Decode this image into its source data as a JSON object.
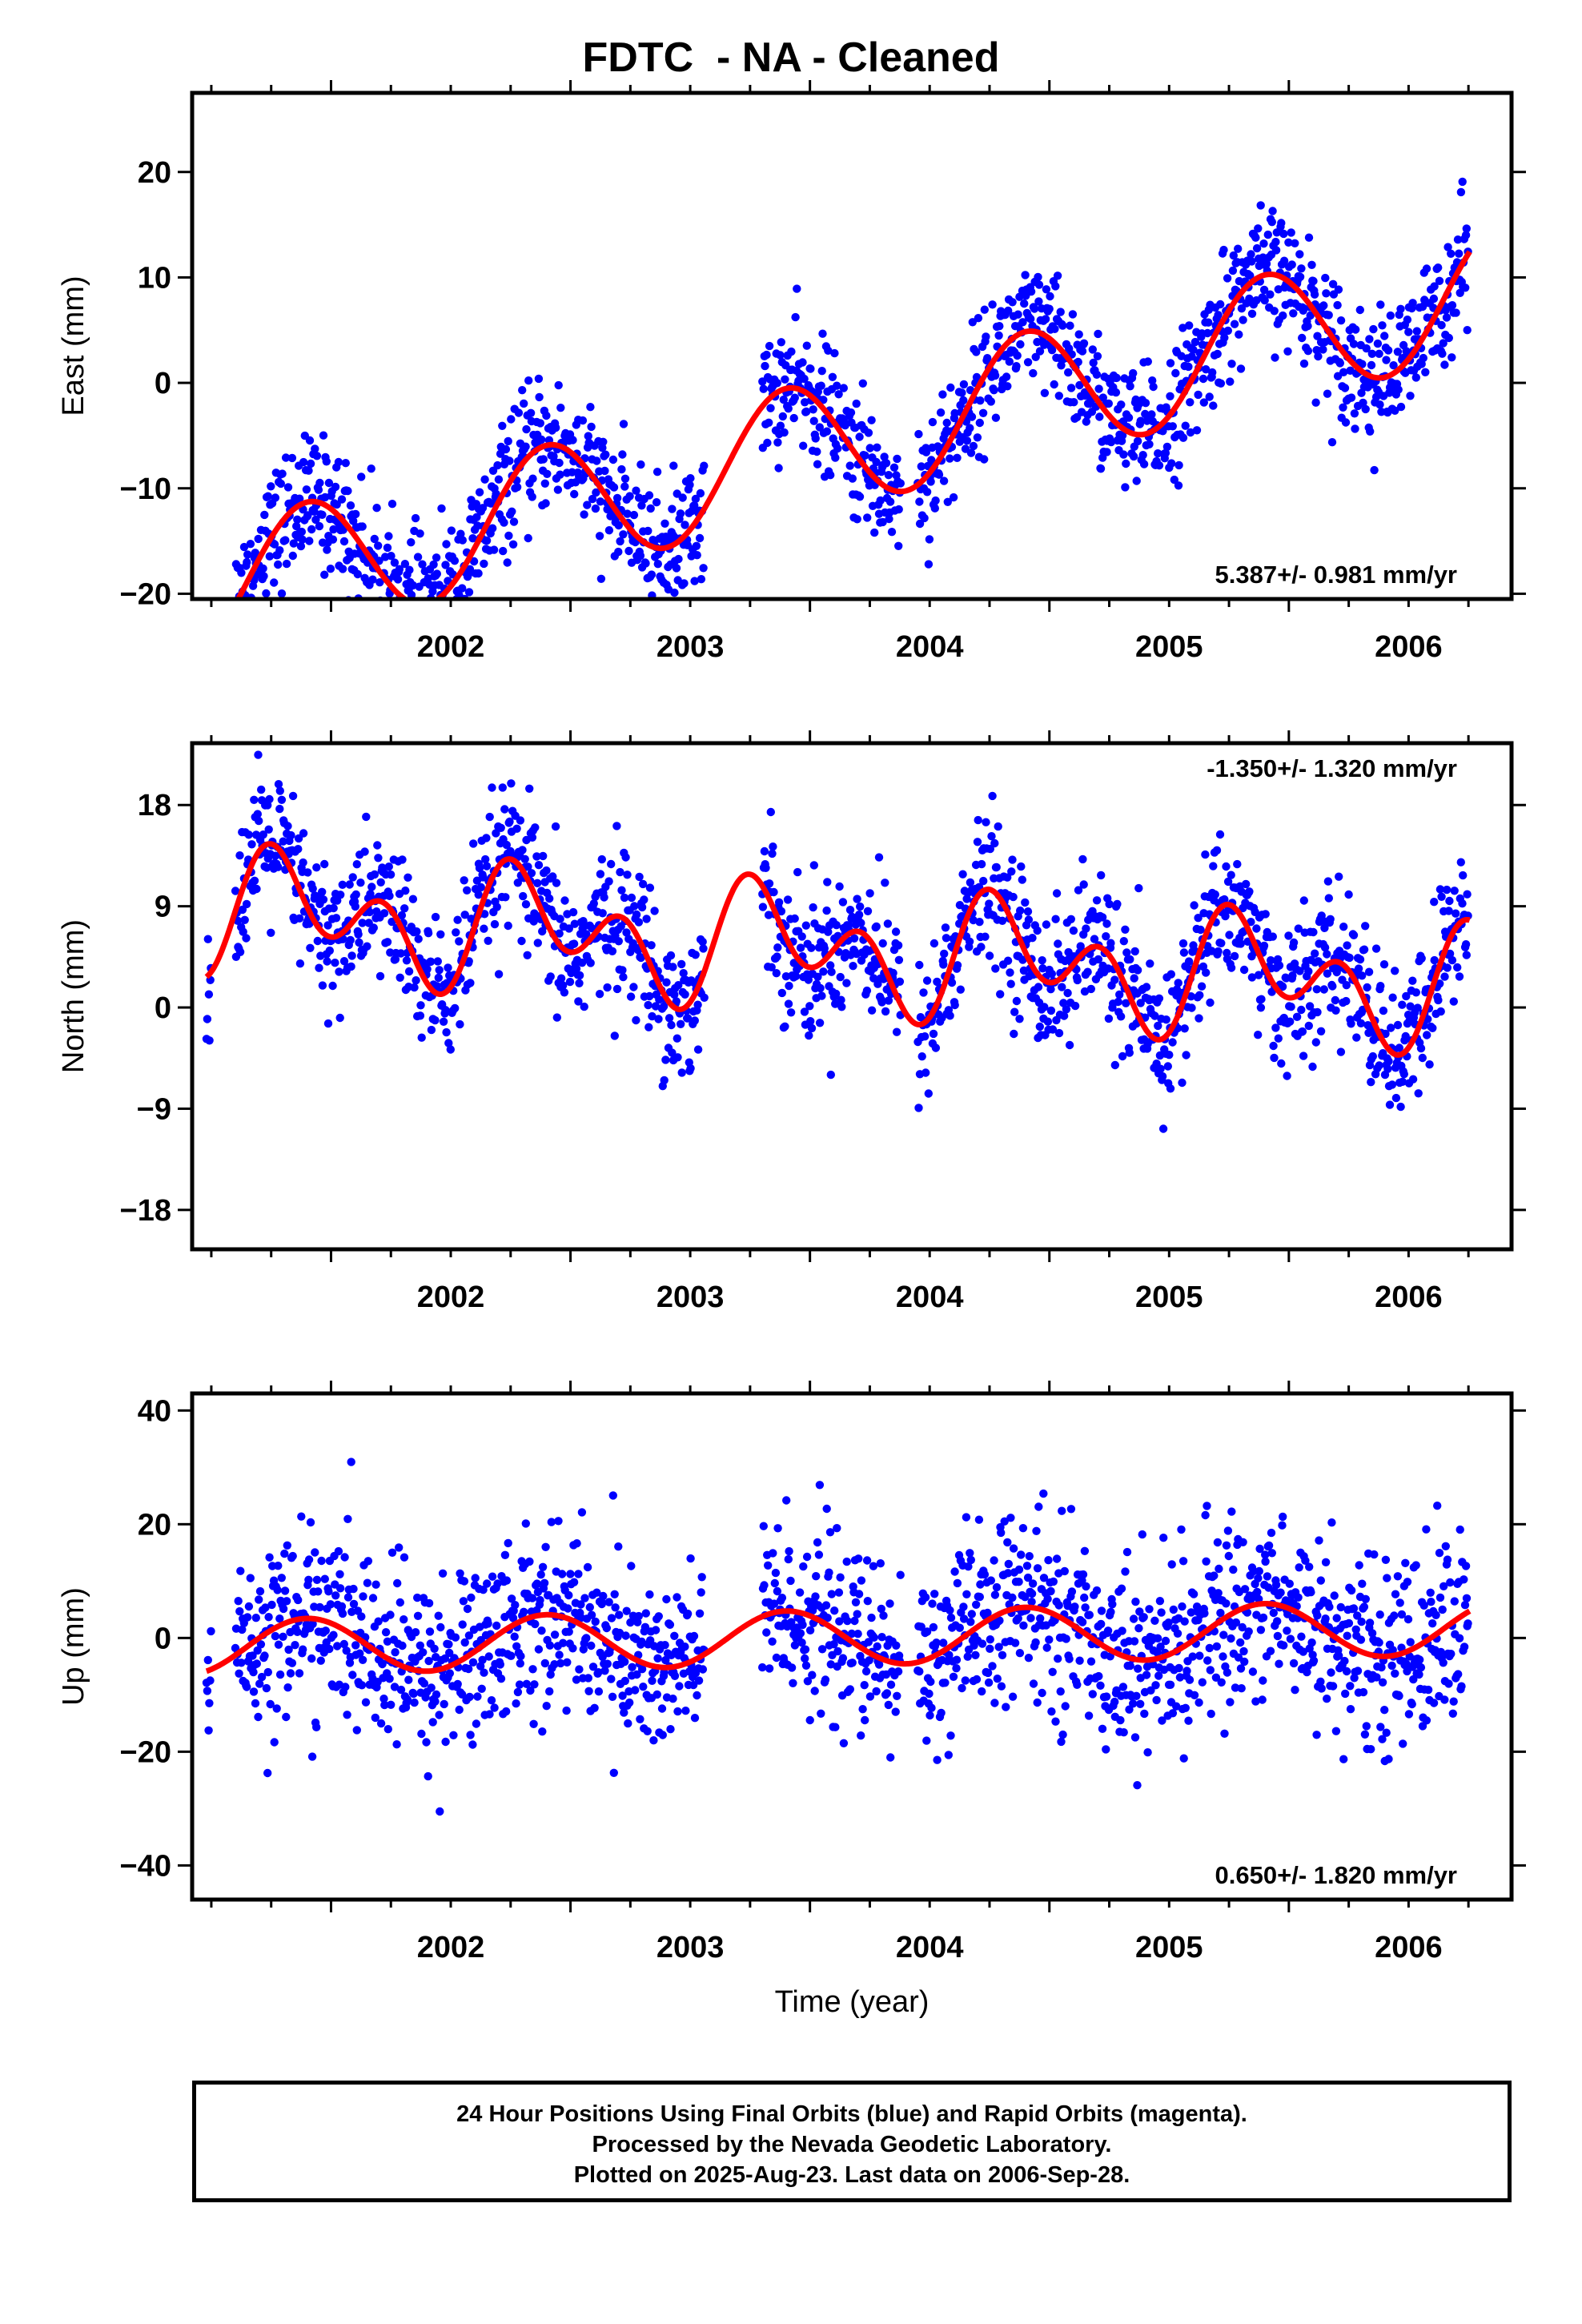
{
  "title": "FDTC  - NA - Cleaned",
  "colors": {
    "points": "#0000ff",
    "fit": "#ff0000",
    "frame": "#000000"
  },
  "chart_data": [
    {
      "type": "scatter",
      "ylabel": "East (mm)",
      "xlabel": "",
      "xlim": [
        2001.42,
        2006.93
      ],
      "ylim": [
        -20.5,
        27.5
      ],
      "xticks": [
        2002,
        2003,
        2004,
        2005,
        2006
      ],
      "yticks": [
        -20,
        -10,
        0,
        10,
        20
      ],
      "rate_label": "5.387+/- 0.981 mm/yr",
      "rate_position": "bottom-right",
      "fit": {
        "rate": 5.387,
        "offset": -6.2,
        "annual_amplitude": 6.2,
        "annual_phase_year": 2001.65,
        "semiannual_amplitude": 0,
        "semiannual_phase_year": 2001.6
      },
      "segments": [
        [
          2001.48,
          2001.5
        ],
        [
          2001.6,
          2003.56
        ],
        [
          2003.8,
          2004.38
        ],
        [
          2004.45,
          2006.75
        ]
      ],
      "noise_sd": 3.0,
      "n_points": 1640,
      "series": [
        {
          "values": "blue points — daily 24 hour positions"
        },
        {
          "values": "red curve — seasonal plus linear fit"
        }
      ]
    },
    {
      "type": "scatter",
      "ylabel": "North (mm)",
      "xlabel": "",
      "xlim": [
        2001.42,
        2006.93
      ],
      "ylim": [
        -21.5,
        23.5
      ],
      "xticks": [
        2002,
        2003,
        2004,
        2005,
        2006
      ],
      "yticks": [
        -18,
        -9,
        0,
        9,
        18
      ],
      "rate_label": "-1.350+/- 1.320 mm/yr",
      "rate_position": "top-right",
      "fit": {
        "rate": -1.35,
        "offset": 5.3,
        "annual_amplitude": 3.2,
        "annual_phase_year": 2001.6,
        "semiannual_amplitude": 3.8,
        "semiannual_phase_year": 2001.6
      },
      "segments": [
        [
          2001.48,
          2001.5
        ],
        [
          2001.6,
          2003.56
        ],
        [
          2003.8,
          2004.38
        ],
        [
          2004.45,
          2006.75
        ]
      ],
      "noise_sd": 3.2,
      "n_points": 1640,
      "series": [
        {
          "values": "blue points — daily 24 hour positions"
        },
        {
          "values": "red curve — seasonal plus linear fit"
        }
      ]
    },
    {
      "type": "scatter",
      "ylabel": "Up (mm)",
      "xlabel": "Time (year)",
      "xlim": [
        2001.42,
        2006.93
      ],
      "ylim": [
        -46,
        43
      ],
      "xticks": [
        2002,
        2003,
        2004,
        2005,
        2006
      ],
      "yticks": [
        -40,
        -20,
        0,
        20,
        40
      ],
      "rate_label": "0.650+/- 1.820 mm/yr",
      "rate_position": "bottom-right",
      "fit": {
        "rate": 0.65,
        "offset": 0,
        "annual_amplitude": 4.8,
        "annual_phase_year": 2001.65,
        "semiannual_amplitude": 0,
        "semiannual_phase_year": 2001.6
      },
      "segments": [
        [
          2001.48,
          2001.5
        ],
        [
          2001.6,
          2003.56
        ],
        [
          2003.8,
          2004.38
        ],
        [
          2004.45,
          2006.75
        ]
      ],
      "noise_sd": 8.0,
      "n_points": 1640,
      "series": [
        {
          "values": "blue points — daily 24 hour positions"
        },
        {
          "values": "red curve — seasonal plus linear fit"
        }
      ]
    }
  ],
  "caption": {
    "line1": "24 Hour Positions Using Final Orbits (blue) and Rapid Orbits (magenta).",
    "line2": "Processed by the Nevada Geodetic Laboratory.",
    "line3": "Plotted on 2025-Aug-23. Last data on 2006-Sep-28."
  }
}
